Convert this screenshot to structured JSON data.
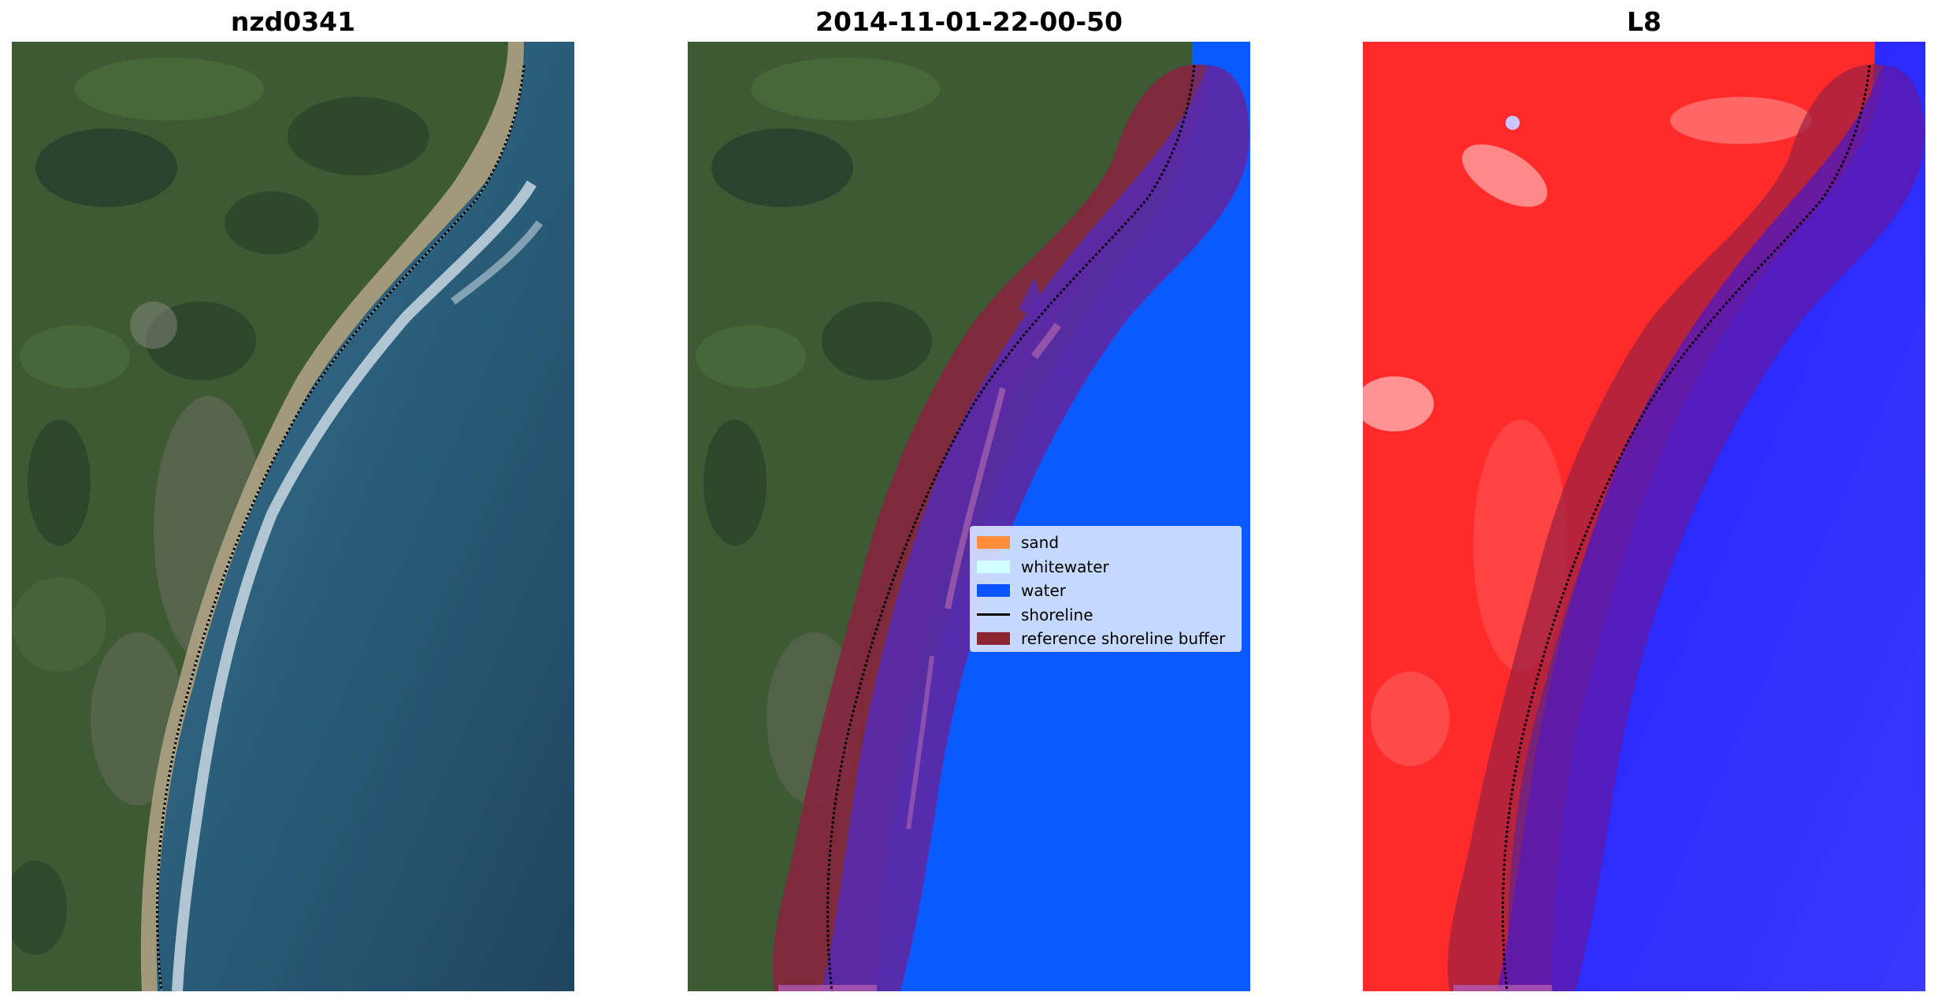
{
  "panels": [
    {
      "title": "nzd0341"
    },
    {
      "title": "2014-11-01-22-00-50"
    },
    {
      "title": "L8"
    }
  ],
  "legend": {
    "items": [
      {
        "label": "sand",
        "color": "#ff8c3a"
      },
      {
        "label": "whitewater",
        "color": "#d2ffff"
      },
      {
        "label": "water",
        "color": "#0a55ff"
      },
      {
        "label": "shoreline",
        "color": "#000000"
      },
      {
        "label": "reference shoreline buffer",
        "color": "#8b2530"
      }
    ]
  },
  "colors": {
    "land_green": "#3c5a32",
    "ocean": "#2c5872",
    "classified_water": "#0a5aff",
    "buffer": "#8b2038",
    "buffer_over_water": "#5a2aa8",
    "l8_red": "#ff2b2b",
    "l8_blue": "#1a1aff"
  }
}
